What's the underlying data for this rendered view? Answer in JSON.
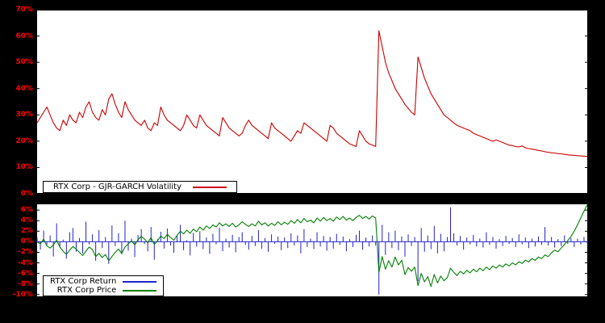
{
  "page": {
    "background": "#000000",
    "plot_background": "#ffffff",
    "tick_color": "#ff0000"
  },
  "chart_data": [
    {
      "type": "line",
      "title": "",
      "xlabel": "",
      "ylabel": "",
      "ylim": [
        0,
        70
      ],
      "yticks": [
        70,
        60,
        50,
        40,
        30,
        20,
        10,
        0
      ],
      "ytick_suffix": "%",
      "tick_color": "#ff0000",
      "grid": false,
      "legend_position": "bottom-left",
      "series": [
        {
          "name": "RTX Corp - GJR-GARCH Volatility",
          "type": "line",
          "color": "#cc0000",
          "values": [
            27,
            29,
            31,
            33,
            30,
            27,
            25,
            24,
            28,
            26,
            30,
            28,
            27,
            31,
            29,
            33,
            35,
            31,
            29,
            28,
            32,
            30,
            36,
            38,
            34,
            31,
            29,
            35,
            32,
            30,
            28,
            27,
            26,
            28,
            25,
            24,
            27,
            26,
            33,
            30,
            28,
            27,
            26,
            25,
            24,
            26,
            30,
            28,
            26,
            25,
            30,
            28,
            26,
            25,
            24,
            23,
            22,
            29,
            27,
            25,
            24,
            23,
            22,
            23,
            26,
            28,
            26,
            25,
            24,
            23,
            22,
            21,
            27,
            25,
            24,
            23,
            22,
            21,
            20,
            22,
            24,
            23,
            27,
            26,
            25,
            24,
            23,
            22,
            21,
            20,
            26,
            25,
            23,
            22,
            21,
            20,
            19,
            18.5,
            18,
            24,
            22,
            20,
            19,
            18.5,
            18,
            62,
            56,
            50,
            46,
            43,
            40,
            38,
            36,
            34,
            32.5,
            31,
            30,
            52,
            48,
            44,
            41,
            38,
            36,
            34,
            32,
            30,
            29,
            28,
            27,
            26,
            25.5,
            25,
            24.5,
            24,
            23,
            22.5,
            22,
            21.5,
            21,
            20.5,
            20,
            20.5,
            20,
            19.5,
            19,
            18.5,
            18.3,
            18,
            17.8,
            18.2,
            17.5,
            17.2,
            17,
            16.8,
            16.5,
            16.3,
            16,
            15.8,
            15.6,
            15.5,
            15.3,
            15.2,
            15,
            14.8,
            14.7,
            14.6,
            14.5,
            14.4,
            14.3,
            14.2
          ]
        }
      ]
    },
    {
      "type": "mixed",
      "title": "",
      "xlabel": "",
      "ylabel": "",
      "ylim": [
        -10.5,
        7.25
      ],
      "yticks": [
        6,
        4,
        2,
        0,
        -2,
        -4,
        -6,
        -8,
        -10
      ],
      "ytick_suffix": "%",
      "tick_color": "#ff0000",
      "grid": false,
      "legend_position": "bottom-left",
      "series": [
        {
          "name": "RTX Corp Return",
          "type": "stem",
          "color": "#2222cc",
          "values": [
            0.8,
            -1.5,
            2.1,
            -0.6,
            1.2,
            -2.8,
            3.5,
            -1.1,
            0.4,
            -3.2,
            1.8,
            2.6,
            -1.9,
            0.7,
            -2.2,
            3.8,
            -0.5,
            1.4,
            -3.6,
            2.2,
            -1.2,
            0.9,
            -4.2,
            3.1,
            -0.8,
            1.6,
            -2.4,
            4.0,
            -1.7,
            0.6,
            -2.9,
            1.3,
            2.4,
            -0.4,
            -1.8,
            2.8,
            -3.4,
            0.5,
            1.9,
            -1.3,
            2.5,
            -0.7,
            -2.1,
            1.1,
            3.2,
            -1.6,
            0.3,
            -2.6,
            1.7,
            -0.9,
            2.0,
            -1.4,
            0.8,
            -2.3,
            1.5,
            -0.5,
            2.7,
            -1.8,
            0.6,
            -1.1,
            1.3,
            -2.0,
            0.9,
            1.8,
            -0.6,
            -1.5,
            1.1,
            -0.8,
            2.2,
            -1.3,
            0.7,
            -1.9,
            1.4,
            -0.4,
            1.0,
            -1.6,
            0.8,
            -1.2,
            1.6,
            -0.7,
            1.2,
            -2.2,
            2.4,
            -1.0,
            0.6,
            -1.4,
            1.8,
            -0.9,
            1.1,
            -1.7,
            0.9,
            -1.3,
            1.5,
            -0.6,
            1.0,
            -1.8,
            0.5,
            -1.0,
            1.3,
            2.1,
            -1.5,
            0.8,
            -0.9,
            1.2,
            -0.7,
            -10.0,
            3.2,
            -2.5,
            1.8,
            -1.2,
            2.1,
            -1.6,
            1.0,
            -2.8,
            1.4,
            -0.8,
            0.9,
            -7.5,
            2.6,
            -1.9,
            1.2,
            -1.4,
            3.0,
            -2.2,
            1.5,
            -1.8,
            0.9,
            6.5,
            1.6,
            -0.7,
            1.1,
            -1.5,
            0.8,
            -0.5,
            1.3,
            -0.9,
            0.6,
            -1.1,
            1.8,
            -0.6,
            0.9,
            -1.3,
            0.5,
            -0.8,
            1.1,
            -0.4,
            0.7,
            -1.0,
            1.4,
            -0.5,
            0.8,
            -1.2,
            0.6,
            -0.9,
            1.0,
            -0.6,
            2.8,
            -0.7,
            0.9,
            -1.1,
            0.5,
            -0.8,
            1.2,
            -0.4,
            0.7,
            -1.0,
            0.6,
            -0.5,
            0.9,
            -0.3
          ]
        },
        {
          "name": "RTX Corp Price",
          "type": "line",
          "color": "#008000",
          "values": [
            0.0,
            -0.4,
            0.5,
            -0.8,
            -1.2,
            -0.6,
            0.3,
            -1.0,
            -1.8,
            -2.4,
            -1.6,
            -0.9,
            -1.4,
            -2.0,
            -2.6,
            -1.8,
            -1.0,
            -1.5,
            -2.8,
            -2.2,
            -3.0,
            -2.4,
            -3.6,
            -2.8,
            -2.0,
            -1.4,
            -2.2,
            -1.0,
            -0.4,
            0.2,
            -0.6,
            0.4,
            1.0,
            0.5,
            -0.2,
            0.8,
            -0.5,
            0.2,
            1.1,
            0.6,
            1.4,
            0.8,
            0.3,
            1.2,
            2.0,
            1.5,
            2.2,
            1.6,
            2.4,
            1.9,
            2.8,
            2.2,
            3.0,
            2.5,
            3.2,
            2.8,
            3.6,
            3.0,
            3.4,
            2.9,
            3.5,
            2.8,
            3.2,
            3.8,
            3.3,
            2.9,
            3.4,
            3.0,
            3.9,
            3.2,
            3.6,
            3.0,
            3.5,
            3.1,
            3.8,
            3.2,
            3.7,
            3.3,
            4.0,
            3.5,
            4.2,
            3.6,
            4.4,
            3.8,
            4.1,
            3.6,
            4.5,
            3.9,
            4.6,
            4.0,
            4.4,
            3.9,
            4.7,
            4.2,
            4.8,
            4.1,
            4.5,
            4.0,
            4.6,
            5.0,
            4.4,
            4.8,
            4.3,
            4.9,
            4.5,
            -5.8,
            -2.8,
            -5.2,
            -3.6,
            -4.8,
            -2.9,
            -4.4,
            -3.5,
            -6.2,
            -4.9,
            -5.6,
            -4.8,
            -8.3,
            -6.0,
            -7.6,
            -6.6,
            -8.5,
            -6.2,
            -7.8,
            -6.5,
            -7.4,
            -6.8,
            -5.0,
            -5.8,
            -6.4,
            -5.6,
            -6.1,
            -5.4,
            -5.9,
            -5.2,
            -5.7,
            -5.0,
            -5.5,
            -4.8,
            -5.3,
            -4.6,
            -5.0,
            -4.4,
            -4.8,
            -4.2,
            -4.6,
            -4.0,
            -4.4,
            -3.8,
            -4.1,
            -3.5,
            -3.8,
            -3.2,
            -3.5,
            -2.9,
            -3.2,
            -2.5,
            -2.8,
            -2.1,
            -1.6,
            -1.9,
            -1.2,
            -0.5,
            0.2,
            1.0,
            2.0,
            3.2,
            4.5,
            5.8,
            7.0
          ]
        }
      ]
    }
  ]
}
